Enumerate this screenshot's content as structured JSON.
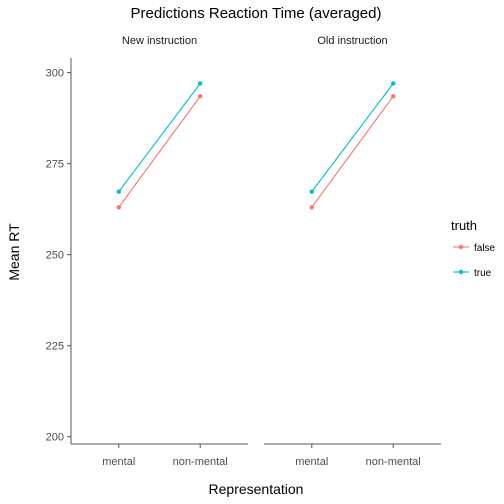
{
  "chart_data": {
    "type": "line",
    "title": "Predictions Reaction Time (averaged)",
    "xlabel": "Representation",
    "ylabel": "Mean RT",
    "ylim": [
      198,
      304
    ],
    "yticks": [
      200,
      225,
      250,
      275,
      300
    ],
    "categories": [
      "mental",
      "non-mental"
    ],
    "legend": {
      "title": "truth",
      "placement": "right"
    },
    "panels": [
      {
        "label": "New instruction",
        "series": [
          {
            "name": "false",
            "color": "#F8766D",
            "values": [
              263,
              293.5
            ]
          },
          {
            "name": "true",
            "color": "#00BFC4",
            "values": [
              267.3,
              297
            ]
          }
        ]
      },
      {
        "label": "Old instruction",
        "series": [
          {
            "name": "false",
            "color": "#F8766D",
            "values": [
              263,
              293.5
            ]
          },
          {
            "name": "true",
            "color": "#00BFC4",
            "values": [
              267.3,
              297
            ]
          }
        ]
      }
    ]
  }
}
